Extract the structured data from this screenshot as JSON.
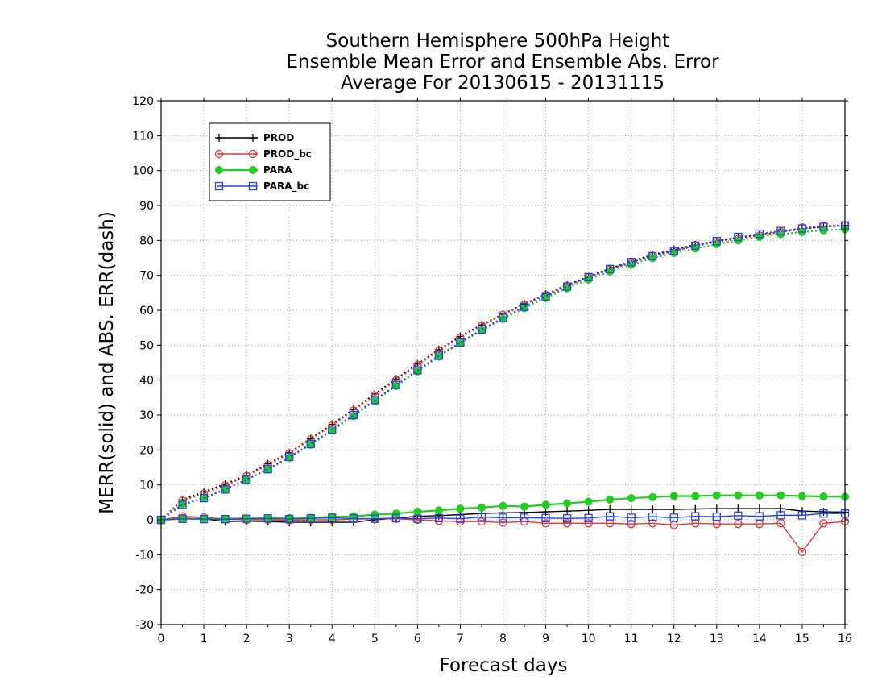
{
  "chart_data": {
    "type": "line",
    "title_lines": [
      "Southern Hemisphere 500hPa Height",
      "Ensemble Mean Error and Ensemble Abs. Error",
      "Average For 20130615 - 20131115"
    ],
    "xlabel": "Forecast days",
    "ylabel": "MERR(solid) and ABS. ERR(dash)",
    "xlim": [
      0,
      16
    ],
    "ylim": [
      -30,
      120
    ],
    "x_ticks": [
      0,
      1,
      2,
      3,
      4,
      5,
      6,
      7,
      8,
      9,
      10,
      11,
      12,
      13,
      14,
      15,
      16
    ],
    "y_ticks": [
      -30,
      -20,
      -10,
      0,
      10,
      20,
      30,
      40,
      50,
      60,
      70,
      80,
      90,
      100,
      110,
      120
    ],
    "grid": true,
    "legend_position": "top-left",
    "x": [
      0,
      0.5,
      1,
      1.5,
      2,
      2.5,
      3,
      3.5,
      4,
      4.5,
      5,
      5.5,
      6,
      6.5,
      7,
      7.5,
      8,
      8.5,
      9,
      9.5,
      10,
      10.5,
      11,
      11.5,
      12,
      12.5,
      13,
      13.5,
      14,
      14.5,
      15,
      15.5,
      16
    ],
    "series": [
      {
        "name": "PROD",
        "color": "#000000",
        "marker": "plus",
        "merr": [
          0,
          0.5,
          0.3,
          -0.5,
          -0.4,
          -0.5,
          -0.7,
          -0.7,
          -0.7,
          -0.7,
          0,
          0.5,
          1,
          1.2,
          1.5,
          1.8,
          2,
          2.1,
          2.3,
          2.5,
          2.7,
          3,
          3,
          3,
          3,
          3.1,
          3.2,
          3.2,
          3.2,
          3.2,
          2.5,
          2.3,
          2.2
        ],
        "abs_err": [
          0,
          5.7,
          8,
          10.2,
          12.8,
          16,
          19.2,
          23.2,
          27.3,
          31.6,
          36,
          40.3,
          44.6,
          48.7,
          52.5,
          55.8,
          58.9,
          61.8,
          64.6,
          67.2,
          69.6,
          71.9,
          74,
          75.8,
          77.4,
          78.7,
          79.8,
          80.8,
          81.6,
          82.4,
          83.3,
          84,
          84.3
        ]
      },
      {
        "name": "PROD_bc",
        "color": "#ee3333",
        "marker": "circle",
        "merr": [
          0,
          1,
          0.7,
          0.2,
          0,
          0,
          -0.2,
          0,
          0,
          0.2,
          0.3,
          0.3,
          0,
          -0.3,
          -0.5,
          -0.5,
          -0.8,
          -0.5,
          -1,
          -1,
          -1,
          -1,
          -1.2,
          -1,
          -1.5,
          -1,
          -1.2,
          -1.2,
          -1.2,
          -1,
          -9.2,
          -1,
          -0.5
        ],
        "abs_err": [
          0,
          5.5,
          7.5,
          9.8,
          12.5,
          15.7,
          19,
          23,
          27,
          31.3,
          35.6,
          40,
          44.3,
          48.4,
          52.2,
          55.6,
          58.7,
          61.6,
          64.4,
          67,
          69.4,
          71.6,
          73.6,
          75.4,
          77,
          78.4,
          79.5,
          80.5,
          81.4,
          82.4,
          83.7,
          84.2,
          84.3
        ]
      },
      {
        "name": "PARA",
        "color": "#22cc22",
        "marker": "dot",
        "merr": [
          0,
          0.3,
          0.3,
          0.3,
          0.4,
          0.4,
          0.5,
          0.6,
          0.8,
          1,
          1.5,
          1.8,
          2.3,
          2.7,
          3.2,
          3.5,
          4,
          3.8,
          4.3,
          4.7,
          5.2,
          5.8,
          6.2,
          6.5,
          6.8,
          6.8,
          7,
          7,
          7,
          7,
          6.8,
          6.7,
          6.6
        ],
        "abs_err": [
          0,
          4.5,
          6.3,
          8.7,
          11.5,
          14.4,
          17.8,
          21.5,
          25.5,
          29.7,
          34,
          38.3,
          42.5,
          46.7,
          50.6,
          54.2,
          57.5,
          60.6,
          63.5,
          66.3,
          68.8,
          71.1,
          73.1,
          74.9,
          76.4,
          77.7,
          78.9,
          80,
          81,
          81.8,
          82.4,
          82.9,
          83.2
        ]
      },
      {
        "name": "PARA_bc",
        "color": "#2244ee",
        "marker": "square",
        "merr": [
          0,
          0.3,
          0.2,
          0.2,
          0.3,
          0.4,
          0.2,
          0.4,
          0.6,
          0.4,
          0.3,
          0.5,
          0.3,
          0.5,
          0.3,
          0.8,
          0.6,
          0.6,
          0.5,
          0.4,
          0.5,
          1,
          0.6,
          0.9,
          0.6,
          1,
          0.9,
          1.2,
          1,
          1.3,
          1.3,
          1.8,
          1.8
        ],
        "abs_err": [
          0,
          4.3,
          6.2,
          8.7,
          11.5,
          14.5,
          18,
          21.7,
          25.8,
          30,
          34.3,
          38.6,
          42.8,
          47,
          50.8,
          54.5,
          57.8,
          61,
          64,
          66.8,
          69.5,
          71.8,
          73.8,
          75.5,
          77,
          78.5,
          79.8,
          81,
          81.9,
          82.7,
          83.4,
          83.9,
          84.3
        ]
      }
    ]
  }
}
